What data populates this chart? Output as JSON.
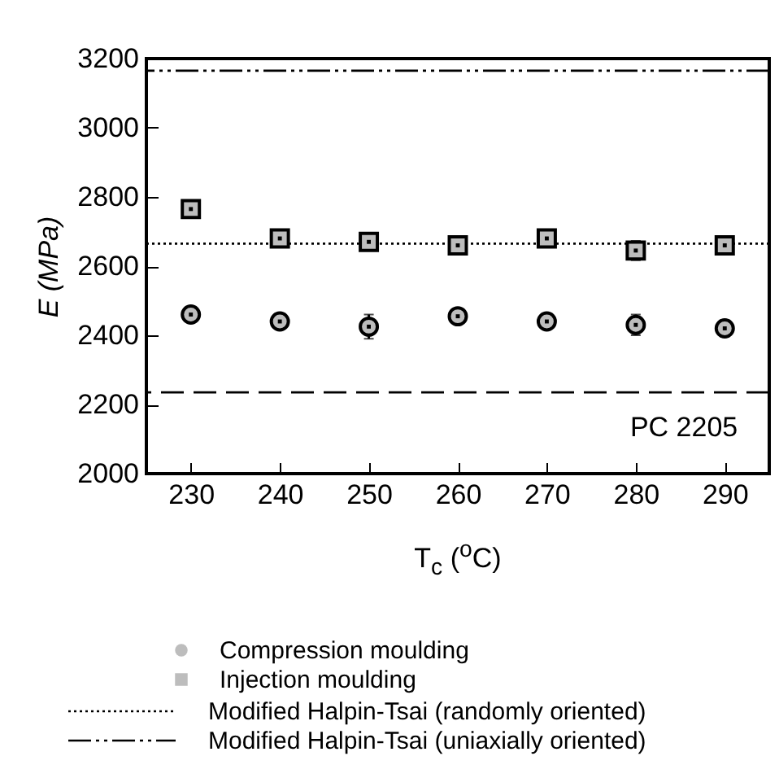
{
  "chart_data": {
    "type": "scatter",
    "xlabel": "T$_{c}$ ($^{o}$C)",
    "ylabel": "E (MPa)",
    "x": [
      230,
      240,
      250,
      260,
      270,
      280,
      290
    ],
    "series": [
      {
        "name": "Compression moulding",
        "color": "#bdbdbd",
        "marker": "circle",
        "values": [
          2460,
          2440,
          2425,
          2455,
          2440,
          2430,
          2420
        ],
        "errors": [
          null,
          null,
          35,
          null,
          null,
          30,
          24
        ]
      },
      {
        "name": "Injection moulding",
        "color": "#bdbdbd",
        "marker": "square",
        "values": [
          2765,
          2680,
          2670,
          2660,
          2680,
          2645,
          2660
        ],
        "errors": [
          null,
          null,
          null,
          null,
          null,
          28,
          null
        ]
      }
    ],
    "ref_lines": [
      {
        "axis": "y",
        "value": 2665,
        "label": "Modified Halpin-Tsai (randomly oriented)",
        "line_style": "dotted",
        "color": "#000000"
      },
      {
        "axis": "y",
        "value": 3165,
        "label": "Modified Halpin-Tsai (uniaxially oriented)",
        "line_style": "dashdot",
        "color": "#000000"
      },
      {
        "axis": "y",
        "value": 2235,
        "line_style": "dashed",
        "color": "#000000"
      }
    ],
    "annotations": [
      {
        "text": "PC 2205",
        "x": 290,
        "y": 2235
      }
    ],
    "xlim": [
      225,
      295
    ],
    "xticks": [
      230,
      240,
      250,
      260,
      270,
      280,
      290
    ],
    "ylim": [
      2000,
      3200
    ],
    "yticks": [
      2000,
      2200,
      2400,
      2600,
      2800,
      3000,
      3200
    ],
    "grid": false,
    "legend": "bottom"
  }
}
